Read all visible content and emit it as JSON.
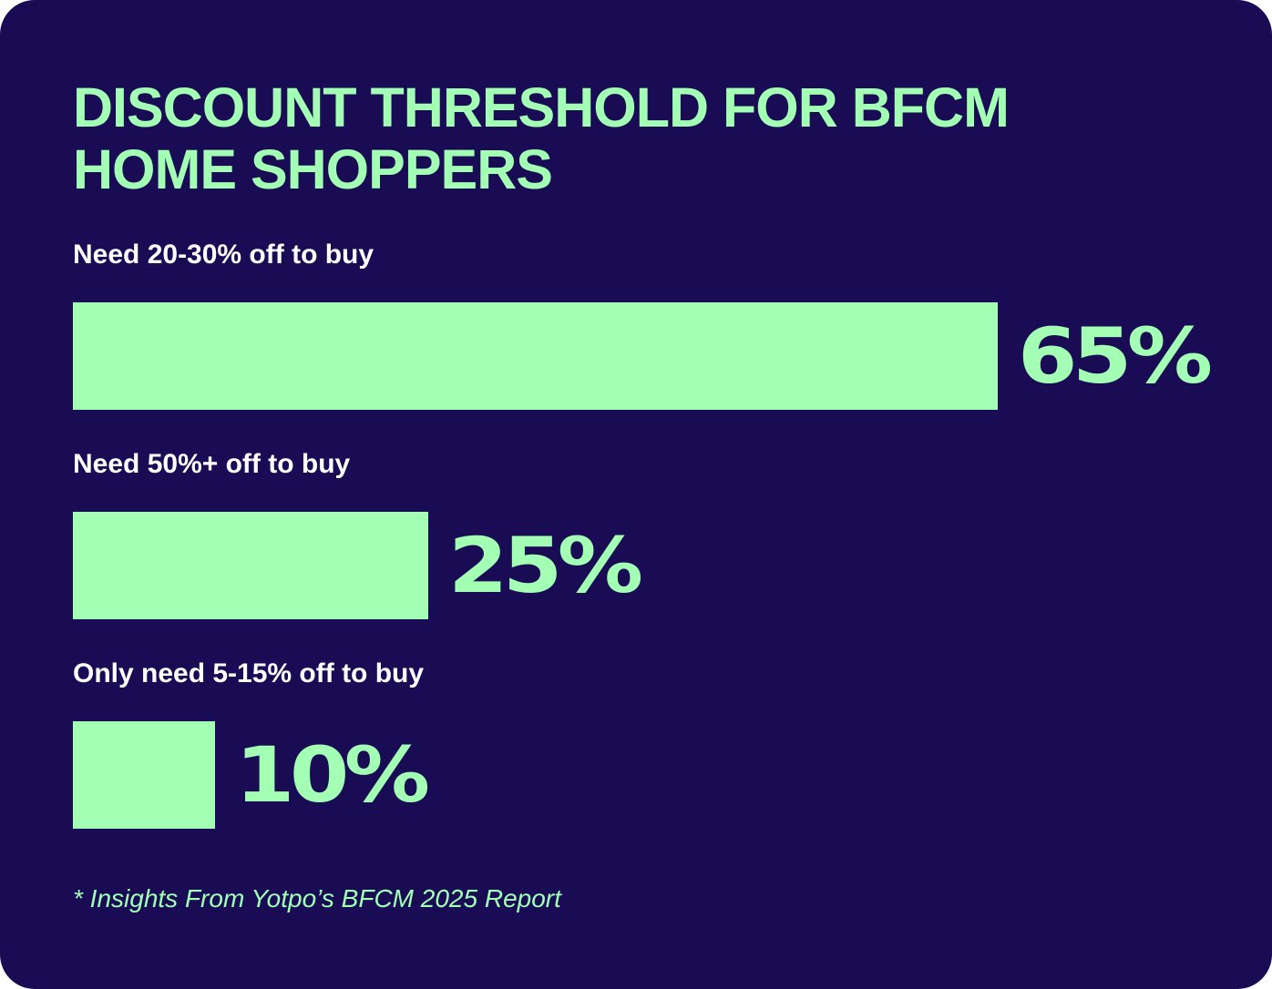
{
  "chart_data": {
    "type": "bar",
    "orientation": "horizontal",
    "title": "DISCOUNT THRESHOLD FOR  BFCM\nHOME SHOPPERS",
    "categories": [
      "Need 20-30% off to buy",
      "Need 50%+ off to buy",
      "Only need 5-15% off to buy"
    ],
    "values": [
      65,
      25,
      10
    ],
    "value_labels": [
      "65%",
      "25%",
      "10%"
    ],
    "unit": "%",
    "xlim": [
      0,
      65
    ],
    "grid": false,
    "legend": "none",
    "footnote": "* Insights From Yotpo’s BFCM 2025 Report"
  },
  "colors": {
    "background": "#190c55",
    "accent": "#a2ffb3",
    "label_text": "#ffffff"
  }
}
